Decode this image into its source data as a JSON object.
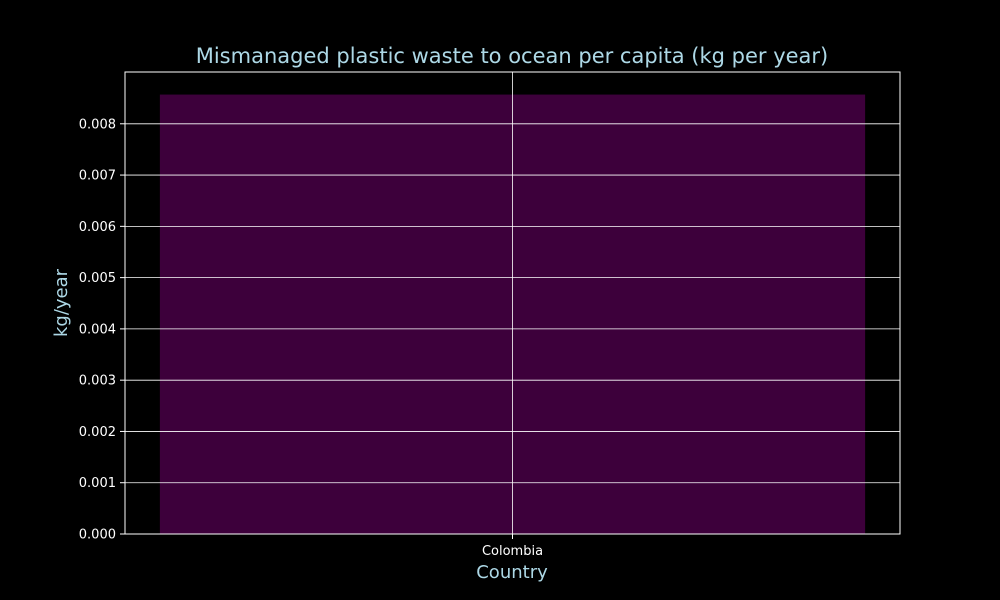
{
  "colors": {
    "background": "#000000",
    "text_accent": "#add8e6",
    "tick_text": "#ffffff",
    "grid": "#ffffff",
    "axes": "#ffffff",
    "bar_fill": "#3d003b"
  },
  "chart_data": {
    "type": "bar",
    "title": "Mismanaged plastic waste to ocean per capita (kg per year)",
    "xlabel": "Country",
    "ylabel": "kg/year",
    "categories": [
      "Colombia"
    ],
    "values": [
      0.00857
    ],
    "ylim": [
      0,
      0.00901
    ],
    "yticks": [
      0,
      0.001,
      0.002,
      0.003,
      0.004,
      0.005,
      0.006,
      0.007,
      0.008
    ],
    "ytick_labels": [
      "0.000",
      "0.001",
      "0.002",
      "0.003",
      "0.004",
      "0.005",
      "0.006",
      "0.007",
      "0.008"
    ],
    "grid": true,
    "legend": "none"
  }
}
